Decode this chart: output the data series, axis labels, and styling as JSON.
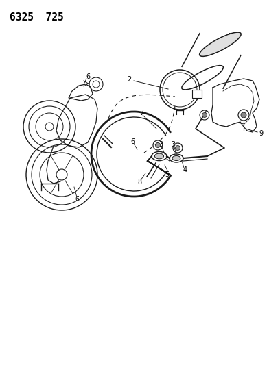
{
  "title": "6325  725",
  "title_fontsize": 10.5,
  "title_fontweight": "bold",
  "background_color": "#ffffff",
  "line_color": "#1a1a1a",
  "figsize": [
    4.08,
    5.33
  ],
  "dpi": 100,
  "label_fontsize": 7.0
}
